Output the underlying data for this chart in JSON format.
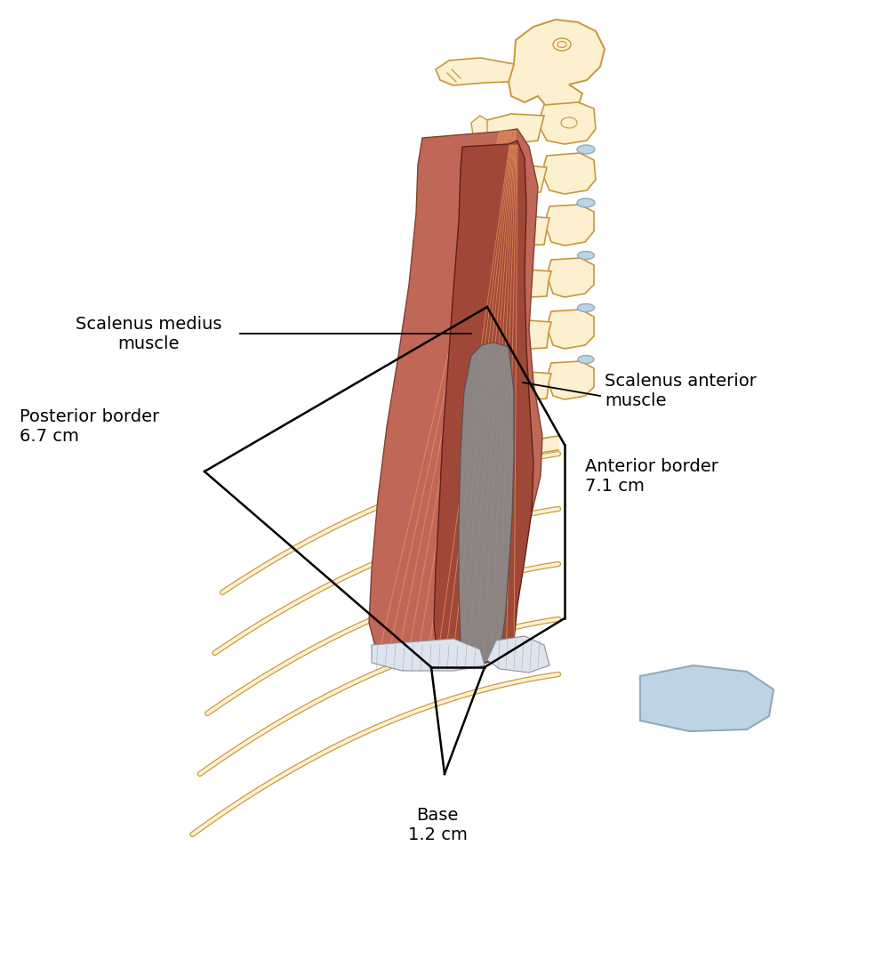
{
  "bg_color": "#ffffff",
  "bone_fill": "#fdf0d0",
  "bone_edge": "#c8963c",
  "cart_fill": "#bdd4e4",
  "cart_edge": "#90aabb",
  "muscle_medius_fill": "#c06858",
  "muscle_anterior_fill": "#a04838",
  "muscle_line_color": "#e0905a",
  "gray_fill": "#8a8a8a",
  "gray_fill2": "#a0a8b0",
  "white_fill": "#dde4ee",
  "tri_color": "#000000",
  "tri_lw": 1.8,
  "ann_color": "#000000",
  "ann_fs": 14,
  "labels": {
    "sc_med": "Scalenus medius\nmuscle",
    "sc_ant": "Scalenus anterior\nmuscle",
    "post": "Posterior border\n6.7 cm",
    "ant": "Anterior border\n7.1 cm",
    "base": "Base\n1.2 cm"
  }
}
